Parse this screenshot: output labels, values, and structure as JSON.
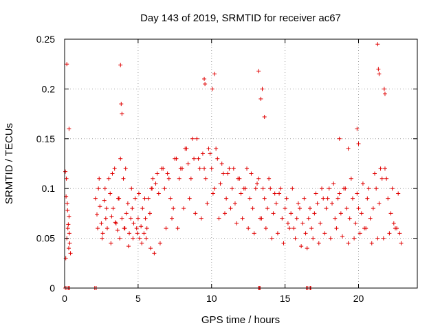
{
  "chart_data": {
    "type": "scatter",
    "title": "Day 143 of 2019, SRMTID for receiver ac67",
    "xlabel": "GPS time / hours",
    "ylabel": "SRMTID / TECUs",
    "xlim": [
      0,
      24
    ],
    "ylim": [
      0,
      0.25
    ],
    "xticks": [
      0,
      5,
      10,
      15,
      20
    ],
    "xtick_labels": [
      "0",
      "5",
      "10",
      "15",
      "20"
    ],
    "yticks": [
      0,
      0.05,
      0.1,
      0.15,
      0.2,
      0.25
    ],
    "ytick_labels": [
      "0",
      "0.05",
      "0.1",
      "0.15",
      "0.2",
      "0.25"
    ],
    "grid": true,
    "marker": "plus",
    "series": [
      {
        "name": "SRMTID",
        "color": "#e00000",
        "x": [
          0.05,
          0.1,
          0.15,
          0.2,
          0.25,
          0.3,
          0.35,
          0.4,
          0.12,
          0.22,
          0.32,
          0.18,
          0.28,
          0.08,
          2.1,
          2.2,
          2.3,
          2.4,
          2.5,
          2.6,
          2.7,
          2.8,
          2.9,
          3.0,
          3.1,
          3.2,
          3.3,
          3.4,
          3.5,
          3.6,
          3.7,
          3.8,
          3.9,
          4.0,
          4.1,
          4.2,
          4.3,
          4.4,
          4.5,
          4.6,
          4.7,
          4.8,
          4.9,
          5.0,
          5.1,
          5.2,
          5.3,
          5.4,
          5.5,
          5.6,
          5.7,
          5.8,
          5.9,
          6.0,
          6.2,
          6.4,
          6.6,
          6.8,
          7.0,
          7.2,
          7.4,
          7.6,
          7.8,
          8.0,
          8.2,
          8.4,
          8.6,
          8.8,
          9.0,
          9.2,
          9.4,
          9.6,
          9.8,
          10.0,
          10.2,
          10.4,
          10.6,
          10.8,
          11.0,
          11.2,
          11.4,
          11.6,
          11.8,
          12.0,
          12.2,
          12.4,
          12.6,
          12.8,
          13.0,
          13.2,
          13.4,
          13.6,
          13.8,
          14.0,
          14.2,
          14.4,
          14.6,
          14.8,
          15.0,
          15.2,
          15.4,
          15.6,
          15.8,
          16.0,
          16.2,
          16.4,
          16.6,
          16.8,
          17.0,
          17.2,
          17.4,
          17.6,
          17.8,
          18.0,
          18.2,
          18.4,
          18.6,
          18.8,
          19.0,
          19.2,
          19.4,
          19.6,
          19.8,
          20.0,
          20.2,
          20.4,
          20.6,
          20.8,
          21.0,
          21.2,
          21.4,
          21.6,
          21.8,
          22.0,
          22.2,
          22.4,
          22.6,
          22.8,
          2.25,
          2.55,
          2.85,
          3.15,
          3.45,
          3.75,
          4.05,
          4.35,
          4.65,
          4.95,
          5.25,
          5.55,
          5.85,
          6.1,
          6.5,
          6.9,
          7.3,
          7.7,
          8.1,
          8.5,
          8.9,
          9.3,
          9.7,
          10.1,
          10.5,
          10.9,
          11.3,
          11.7,
          12.1,
          12.5,
          12.9,
          13.3,
          13.7,
          14.1,
          14.5,
          14.9,
          15.3,
          15.7,
          16.1,
          16.5,
          16.9,
          17.3,
          17.7,
          18.1,
          18.5,
          18.9,
          19.3,
          19.7,
          20.1,
          20.5,
          20.9,
          21.3,
          21.7,
          22.1,
          22.5,
          22.9,
          2.35,
          2.75,
          3.25,
          3.65,
          4.15,
          4.55,
          5.05,
          5.45,
          5.95,
          6.3,
          6.7,
          7.1,
          7.5,
          7.9,
          8.3,
          8.7,
          9.1,
          9.5,
          9.9,
          10.3,
          10.7,
          11.1,
          11.5,
          11.9,
          12.3,
          12.7,
          13.1,
          13.5,
          13.9,
          14.3,
          14.7,
          15.1,
          15.5,
          15.9,
          16.3,
          16.7,
          17.1,
          17.5,
          17.9,
          18.3,
          18.7,
          19.1,
          19.5,
          19.9,
          20.3,
          20.7,
          21.1,
          21.5,
          21.9,
          22.3,
          22.7,
          0.15,
          0.3,
          3.8,
          3.85,
          3.9,
          9.5,
          9.55,
          10.2,
          10.05,
          13.2,
          13.35,
          13.45,
          13.6,
          21.3,
          21.35,
          21.4,
          21.75,
          21.8,
          18.7,
          19.3,
          19.9,
          20.0,
          0.05,
          0.15,
          0.25,
          0.35,
          2.05,
          2.15,
          13.2,
          13.25,
          13.3,
          16.45,
          16.55,
          16.7,
          16.75
        ],
        "y": [
          0.117,
          0.092,
          0.05,
          0.078,
          0.064,
          0.072,
          0.045,
          0.035,
          0.11,
          0.06,
          0.055,
          0.085,
          0.04,
          0.03,
          0.09,
          0.074,
          0.1,
          0.082,
          0.065,
          0.055,
          0.088,
          0.07,
          0.06,
          0.11,
          0.095,
          0.072,
          0.08,
          0.12,
          0.065,
          0.058,
          0.09,
          0.13,
          0.07,
          0.11,
          0.06,
          0.075,
          0.085,
          0.055,
          0.07,
          0.08,
          0.065,
          0.09,
          0.06,
          0.07,
          0.05,
          0.062,
          0.08,
          0.055,
          0.07,
          0.06,
          0.09,
          0.075,
          0.1,
          0.11,
          0.105,
          0.095,
          0.12,
          0.1,
          0.115,
          0.09,
          0.08,
          0.13,
          0.11,
          0.12,
          0.14,
          0.125,
          0.11,
          0.13,
          0.15,
          0.12,
          0.135,
          0.11,
          0.14,
          0.12,
          0.1,
          0.13,
          0.105,
          0.115,
          0.09,
          0.12,
          0.1,
          0.085,
          0.11,
          0.095,
          0.1,
          0.12,
          0.09,
          0.08,
          0.1,
          0.11,
          0.07,
          0.09,
          0.08,
          0.1,
          0.075,
          0.085,
          0.095,
          0.07,
          0.08,
          0.065,
          0.075,
          0.06,
          0.07,
          0.08,
          0.065,
          0.055,
          0.07,
          0.06,
          0.075,
          0.085,
          0.065,
          0.09,
          0.08,
          0.1,
          0.085,
          0.07,
          0.09,
          0.075,
          0.1,
          0.08,
          0.07,
          0.09,
          0.065,
          0.08,
          0.075,
          0.06,
          0.09,
          0.07,
          0.08,
          0.1,
          0.085,
          0.11,
          0.12,
          0.09,
          0.075,
          0.065,
          0.06,
          0.055,
          0.06,
          0.05,
          0.08,
          0.045,
          0.066,
          0.05,
          0.06,
          0.042,
          0.05,
          0.055,
          0.045,
          0.05,
          0.04,
          0.035,
          0.045,
          0.06,
          0.07,
          0.06,
          0.08,
          0.09,
          0.075,
          0.07,
          0.085,
          0.095,
          0.07,
          0.075,
          0.08,
          0.065,
          0.07,
          0.06,
          0.055,
          0.07,
          0.06,
          0.05,
          0.055,
          0.045,
          0.06,
          0.05,
          0.042,
          0.04,
          0.05,
          0.045,
          0.055,
          0.05,
          0.06,
          0.052,
          0.045,
          0.05,
          0.055,
          0.06,
          0.045,
          0.05,
          0.05,
          0.055,
          0.06,
          0.045,
          0.11,
          0.1,
          0.115,
          0.09,
          0.12,
          0.1,
          0.095,
          0.09,
          0.1,
          0.115,
          0.12,
          0.11,
          0.13,
          0.12,
          0.14,
          0.15,
          0.13,
          0.12,
          0.135,
          0.14,
          0.125,
          0.115,
          0.12,
          0.11,
          0.1,
          0.115,
          0.105,
          0.1,
          0.11,
          0.095,
          0.1,
          0.09,
          0.1,
          0.085,
          0.09,
          0.08,
          0.095,
          0.1,
          0.09,
          0.105,
          0.095,
          0.1,
          0.11,
          0.095,
          0.105,
          0.1,
          0.115,
          0.12,
          0.11,
          0.1,
          0.095,
          0.225,
          0.16,
          0.224,
          0.185,
          0.175,
          0.21,
          0.205,
          0.215,
          0.2,
          0.218,
          0.19,
          0.2,
          0.172,
          0.245,
          0.22,
          0.215,
          0.2,
          0.195,
          0.15,
          0.14,
          0.16,
          0.145,
          0.0,
          0.0,
          0.0,
          0.0,
          0.0,
          0.0,
          0.0,
          0.0,
          0.0,
          0.0,
          0.0,
          0.0,
          0.0
        ]
      }
    ]
  }
}
